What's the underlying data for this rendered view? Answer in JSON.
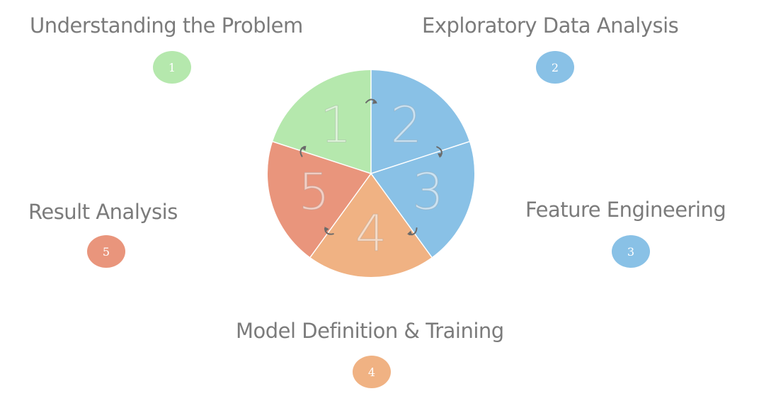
{
  "colors": {
    "step1": "#b5e8ad",
    "step2": "#89c1e6",
    "step3": "#89c1e6",
    "step4": "#f0b283",
    "step5": "#e9957c",
    "title_text": "#7b7b7b",
    "arrow": "#6a6a6a"
  },
  "steps": [
    {
      "number": "1",
      "title": "Understanding the Problem"
    },
    {
      "number": "2",
      "title": "Exploratory Data Analysis"
    },
    {
      "number": "3",
      "title": "Feature Engineering"
    },
    {
      "number": "4",
      "title": "Model Definition & Training"
    },
    {
      "number": "5",
      "title": "Result Analysis"
    }
  ],
  "wheel": {
    "numbers": [
      "1",
      "2",
      "3",
      "4",
      "5"
    ],
    "arrow_icon": "curved-arrow-icon"
  }
}
